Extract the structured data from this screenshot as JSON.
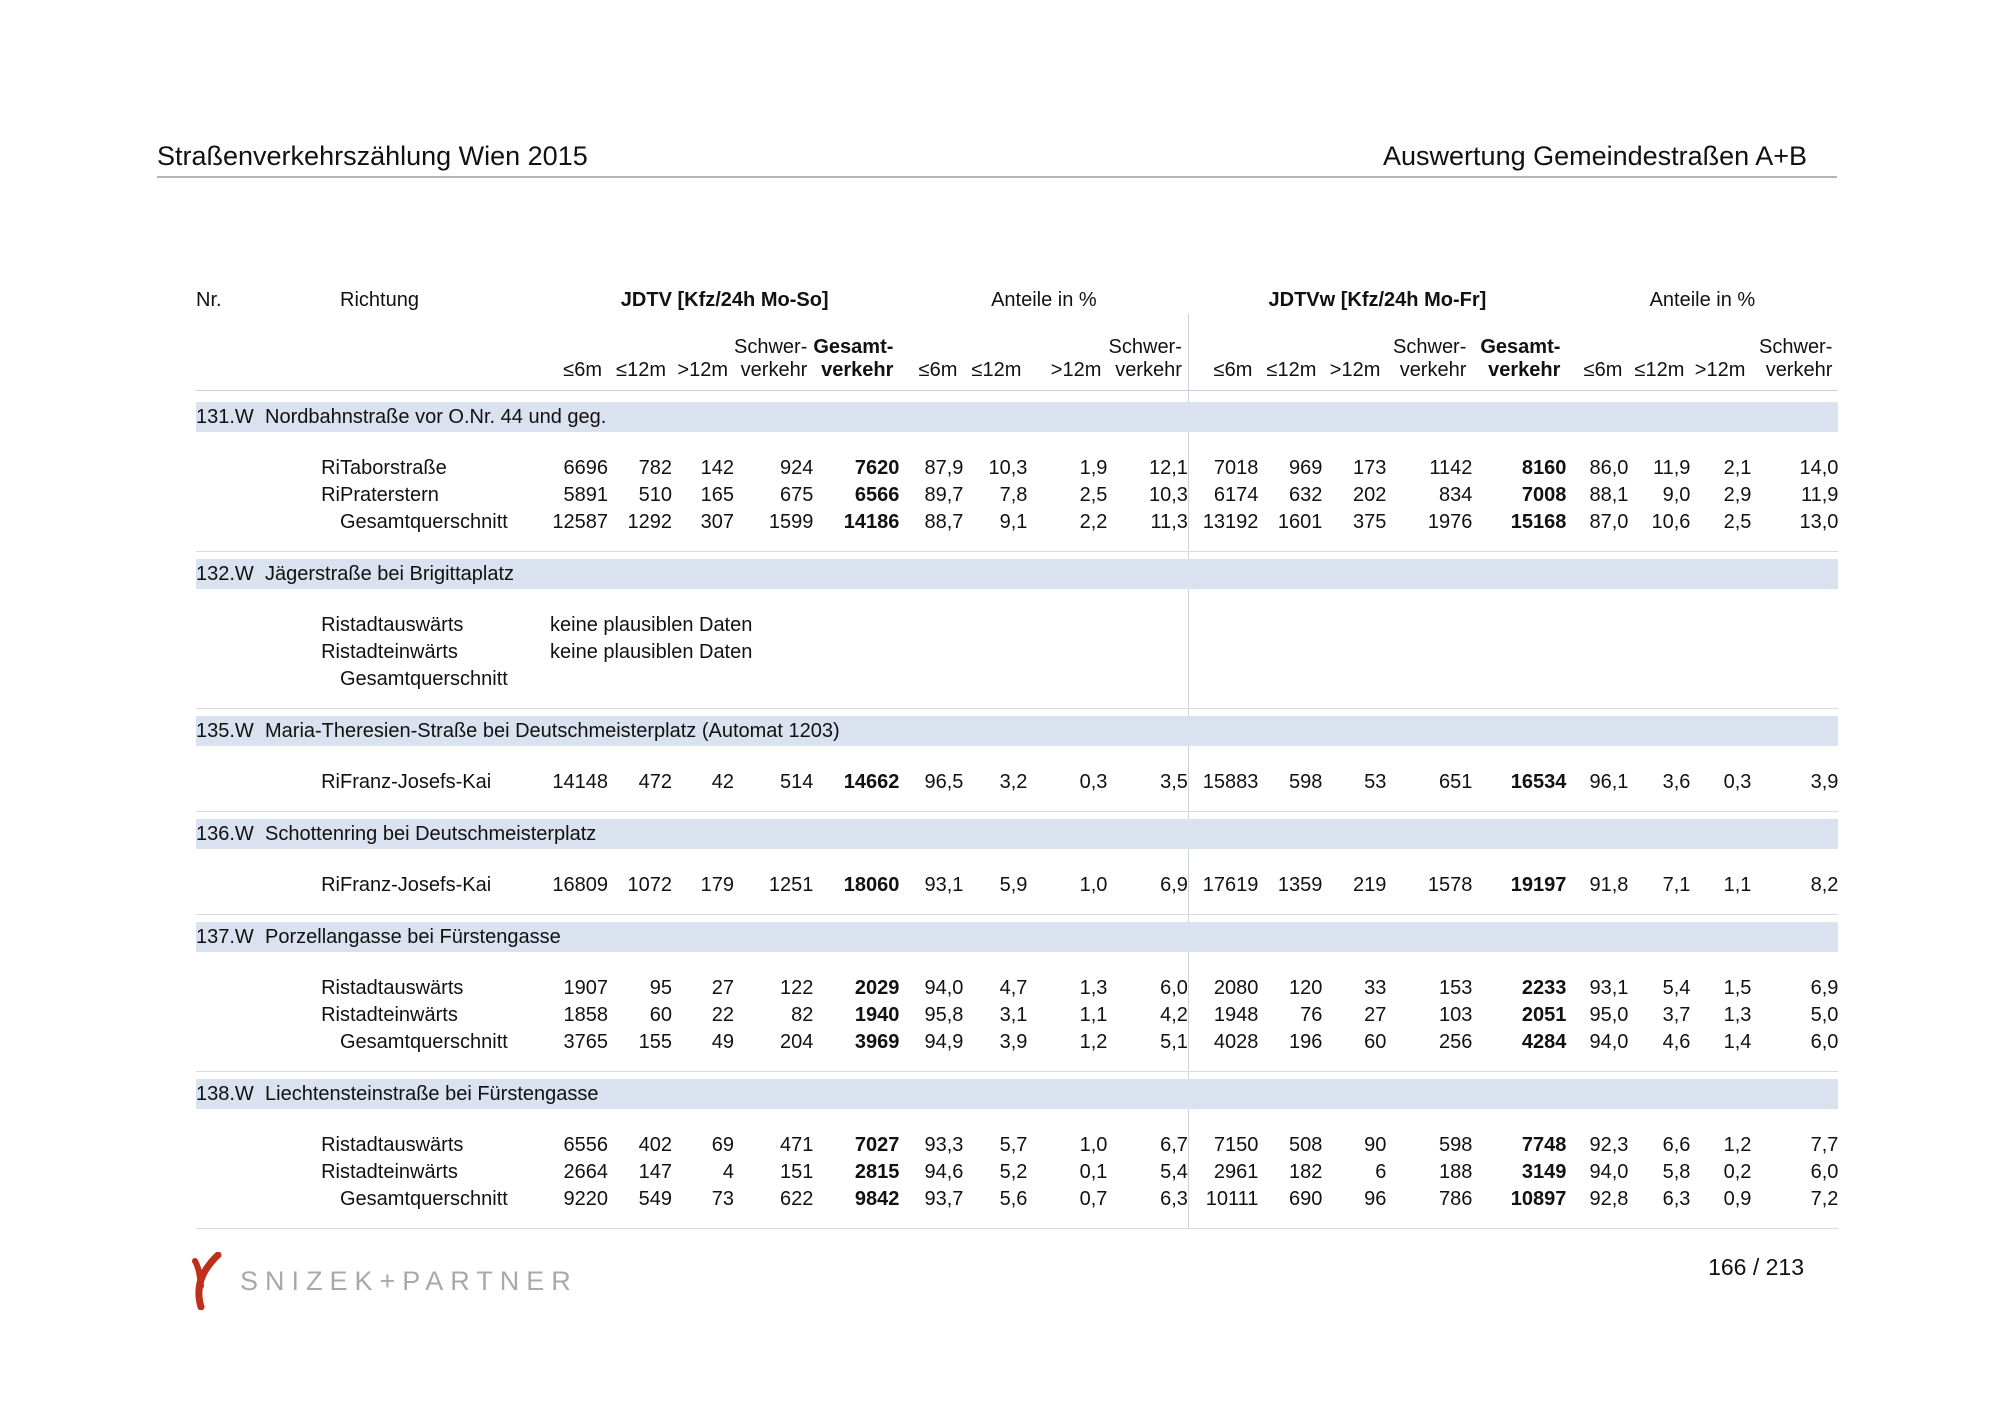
{
  "header": {
    "left": "Straßenverkehrszählung Wien 2015",
    "right": "Auswertung Gemeindestraßen A+B"
  },
  "table": {
    "headers": {
      "nr": "Nr.",
      "richtung": "Richtung",
      "groups": [
        {
          "label": "JDTV [Kfz/24h Mo-So]",
          "bold": true,
          "span": 5
        },
        {
          "label": "Anteile in %",
          "bold": false,
          "span": 4
        },
        {
          "label": "JDTVw [Kfz/24h Mo-Fr]",
          "bold": true,
          "span": 5
        },
        {
          "label": "Anteile in %",
          "bold": false,
          "span": 4
        }
      ],
      "subcolumns": [
        "≤6m",
        "≤12m",
        ">12m",
        "Schwer-\nverkehr",
        "Gesamt-\nverkehr",
        "≤6m",
        "≤12m",
        ">12m",
        "Schwer-\nverkehr",
        "≤6m",
        "≤12m",
        ">12m",
        "Schwer-\nverkehr",
        "Gesamt-\nverkehr",
        "≤6m",
        "≤12m",
        ">12m",
        "Schwer-\nverkehr"
      ],
      "bold_columns": [
        4,
        13
      ]
    },
    "sections": [
      {
        "nr": "131.W",
        "title": "Nordbahnstraße vor O.Nr. 44 und geg.",
        "rows": [
          {
            "ri": "Ri",
            "richtung": "Taborstraße",
            "values": [
              "6696",
              "782",
              "142",
              "924",
              "7620",
              "87,9",
              "10,3",
              "1,9",
              "12,1",
              "7018",
              "969",
              "173",
              "1142",
              "8160",
              "86,0",
              "11,9",
              "2,1",
              "14,0"
            ]
          },
          {
            "ri": "Ri",
            "richtung": "Praterstern",
            "values": [
              "5891",
              "510",
              "165",
              "675",
              "6566",
              "89,7",
              "7,8",
              "2,5",
              "10,3",
              "6174",
              "632",
              "202",
              "834",
              "7008",
              "88,1",
              "9,0",
              "2,9",
              "11,9"
            ]
          },
          {
            "ri": "",
            "richtung": "Gesamtquerschnitt",
            "values": [
              "12587",
              "1292",
              "307",
              "1599",
              "14186",
              "88,7",
              "9,1",
              "2,2",
              "11,3",
              "13192",
              "1601",
              "375",
              "1976",
              "15168",
              "87,0",
              "10,6",
              "2,5",
              "13,0"
            ]
          }
        ]
      },
      {
        "nr": "132.W",
        "title": "Jägerstraße bei Brigittaplatz",
        "rows": [
          {
            "ri": "Ri",
            "richtung": "stadtauswärts",
            "note": "keine plausiblen Daten",
            "values": []
          },
          {
            "ri": "Ri",
            "richtung": "stadteinwärts",
            "note": "keine plausiblen Daten",
            "values": []
          },
          {
            "ri": "",
            "richtung": "Gesamtquerschnitt",
            "values": []
          }
        ]
      },
      {
        "nr": "135.W",
        "title": "Maria-Theresien-Straße bei Deutschmeisterplatz (Automat 1203)",
        "rows": [
          {
            "ri": "Ri",
            "richtung": "Franz-Josefs-Kai",
            "values": [
              "14148",
              "472",
              "42",
              "514",
              "14662",
              "96,5",
              "3,2",
              "0,3",
              "3,5",
              "15883",
              "598",
              "53",
              "651",
              "16534",
              "96,1",
              "3,6",
              "0,3",
              "3,9"
            ]
          }
        ]
      },
      {
        "nr": "136.W",
        "title": "Schottenring bei Deutschmeisterplatz",
        "rows": [
          {
            "ri": "Ri",
            "richtung": "Franz-Josefs-Kai",
            "values": [
              "16809",
              "1072",
              "179",
              "1251",
              "18060",
              "93,1",
              "5,9",
              "1,0",
              "6,9",
              "17619",
              "1359",
              "219",
              "1578",
              "19197",
              "91,8",
              "7,1",
              "1,1",
              "8,2"
            ]
          }
        ]
      },
      {
        "nr": "137.W",
        "title": "Porzellangasse bei Fürstengasse",
        "rows": [
          {
            "ri": "Ri",
            "richtung": "stadtauswärts",
            "values": [
              "1907",
              "95",
              "27",
              "122",
              "2029",
              "94,0",
              "4,7",
              "1,3",
              "6,0",
              "2080",
              "120",
              "33",
              "153",
              "2233",
              "93,1",
              "5,4",
              "1,5",
              "6,9"
            ]
          },
          {
            "ri": "Ri",
            "richtung": "stadteinwärts",
            "values": [
              "1858",
              "60",
              "22",
              "82",
              "1940",
              "95,8",
              "3,1",
              "1,1",
              "4,2",
              "1948",
              "76",
              "27",
              "103",
              "2051",
              "95,0",
              "3,7",
              "1,3",
              "5,0"
            ]
          },
          {
            "ri": "",
            "richtung": "Gesamtquerschnitt",
            "values": [
              "3765",
              "155",
              "49",
              "204",
              "3969",
              "94,9",
              "3,9",
              "1,2",
              "5,1",
              "4028",
              "196",
              "60",
              "256",
              "4284",
              "94,0",
              "4,6",
              "1,4",
              "6,0"
            ]
          }
        ]
      },
      {
        "nr": "138.W",
        "title": "Liechtensteinstraße bei Fürstengasse",
        "rows": [
          {
            "ri": "Ri",
            "richtung": "stadtauswärts",
            "values": [
              "6556",
              "402",
              "69",
              "471",
              "7027",
              "93,3",
              "5,7",
              "1,0",
              "6,7",
              "7150",
              "508",
              "90",
              "598",
              "7748",
              "92,3",
              "6,6",
              "1,2",
              "7,7"
            ]
          },
          {
            "ri": "Ri",
            "richtung": "stadteinwärts",
            "values": [
              "2664",
              "147",
              "4",
              "151",
              "2815",
              "94,6",
              "5,2",
              "0,1",
              "5,4",
              "2961",
              "182",
              "6",
              "188",
              "3149",
              "94,0",
              "5,8",
              "0,2",
              "6,0"
            ]
          },
          {
            "ri": "",
            "richtung": "Gesamtquerschnitt",
            "values": [
              "9220",
              "549",
              "73",
              "622",
              "9842",
              "93,7",
              "5,6",
              "0,7",
              "6,3",
              "10111",
              "690",
              "96",
              "786",
              "10897",
              "92,8",
              "6,3",
              "0,9",
              "7,2"
            ]
          }
        ]
      }
    ]
  },
  "footer": {
    "logo_text": "SNIZEK+PARTNER",
    "logo_color": "#bf2f1a",
    "page": "166 / 213"
  }
}
